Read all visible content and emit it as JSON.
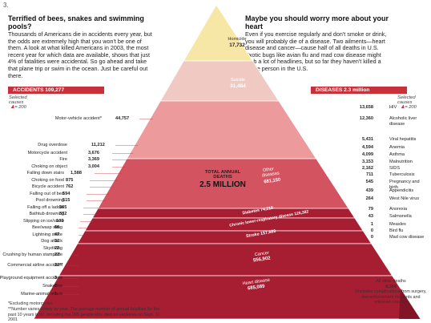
{
  "page_number": "3.",
  "left_panel": {
    "heading": "Terrified of bees, snakes and swimming pools?",
    "body": "Thousands of Americans die in accidents every year, but the odds are extremely high that you won't be one of them. A look at what killed Americans in 2003, the most recent year for which data are available, shows that just 4% of fatalities were accidental. So go ahead and take that plane trip or swim in the ocean. Just be careful out there.",
    "bar_label": "ACCIDENTS 109,277",
    "selected": "Selected causes",
    "scale": "= 200"
  },
  "right_panel": {
    "heading": "Maybe you should worry more about your heart",
    "body": "Even if you exercise regularly and don't smoke or drink, you will probably die of a disease. Two ailments—heart disease and cancer—cause half of all deaths in U.S. Exotic bugs like avian flu and mad cow disease might grab a lot of headlines, but so far they haven't killed a single person in the U.S.",
    "bar_label": "DISEASES 2.3 million",
    "selected": "Selected causes",
    "scale": "= 200"
  },
  "center": {
    "total_label": "TOTAL ANNUAL DEATHS",
    "total_value": "2.5 MILLION"
  },
  "chart_data": {
    "type": "pyramid",
    "title": "TOTAL ANNUAL DEATHS 2.5 MILLION",
    "pyramid_tiers": [
      {
        "label": "Homicide",
        "value": "17,732"
      },
      {
        "label": "Suicide",
        "value": "31,484"
      },
      {
        "label": "Accidents",
        "value": ""
      },
      {
        "label": "Other diseases",
        "value": "681,150"
      },
      {
        "label": "Diabetes",
        "value": "74,219"
      },
      {
        "label": "Chronic lower-respiratory disease",
        "value": "126,382"
      },
      {
        "label": "Stroke",
        "value": "157,689"
      },
      {
        "label": "Cancer",
        "value": "556,902"
      },
      {
        "label": "Heart disease",
        "value": "685,089"
      }
    ],
    "accidents": {
      "total": 109277,
      "causes": [
        {
          "label": "Motor-vehicle accident*",
          "value": "44,757"
        },
        {
          "label": "Drug overdose",
          "value": "11,212"
        },
        {
          "label": "Motorcycle accident",
          "value": "3,676"
        },
        {
          "label": "Fire",
          "value": "3,369"
        },
        {
          "label": "Choking on object",
          "value": "3,004"
        },
        {
          "label": "Falling down stairs",
          "value": "1,588"
        },
        {
          "label": "Choking on food",
          "value": "875"
        },
        {
          "label": "Bicycle accident",
          "value": "762"
        },
        {
          "label": "Falling out of bed",
          "value": "594"
        },
        {
          "label": "Pool drowning",
          "value": "515"
        },
        {
          "label": "Falling off a ladder",
          "value": "365"
        },
        {
          "label": "Bathtub drowning",
          "value": "332"
        },
        {
          "label": "Slipping on ice/snow",
          "value": "103"
        },
        {
          "label": "Bee/wasp sting",
          "value": "66"
        },
        {
          "label": "Lightning strike",
          "value": "47"
        },
        {
          "label": "Dog attack",
          "value": "32"
        },
        {
          "label": "Skydiving",
          "value": "22"
        },
        {
          "label": "Crushing by human stampede",
          "value": "22"
        },
        {
          "label": "Commercial airline accident",
          "value": "22**"
        },
        {
          "label": "Playground equipment accident",
          "value": "3"
        },
        {
          "label": "Snakebite",
          "value": "2"
        },
        {
          "label": "Marine-animal attack",
          "value": "1"
        }
      ]
    },
    "diseases": {
      "total": "2.3 million",
      "causes": [
        {
          "label": "HIV",
          "value": "13,658"
        },
        {
          "label": "Alcoholic liver disease",
          "value": "12,360"
        },
        {
          "label": "Viral hepatitis",
          "value": "5,431"
        },
        {
          "label": "Anemia",
          "value": "4,594"
        },
        {
          "label": "Asthma",
          "value": "4,099"
        },
        {
          "label": "Malnutrition",
          "value": "3,153"
        },
        {
          "label": "SIDS",
          "value": "2,162"
        },
        {
          "label": "Tuberculosis",
          "value": "711"
        },
        {
          "label": "Pregnancy and birth",
          "value": "545"
        },
        {
          "label": "Appendicitis",
          "value": "439"
        },
        {
          "label": "West Nile virus",
          "value": "264"
        },
        {
          "label": "Anorexia",
          "value": "79"
        },
        {
          "label": "Salmonella",
          "value": "43"
        },
        {
          "label": "Measles",
          "value": "1"
        },
        {
          "label": "Bird flu",
          "value": "0"
        },
        {
          "label": "Mad cow disease",
          "value": "0"
        }
      ]
    },
    "all_other": {
      "label": "All other deaths",
      "value": "8,364",
      "note": "(Includes complications from surgery, law-enforcement incidents and unknown causes)"
    }
  },
  "footnotes": {
    "excluding": "*Excluding motorcycles",
    "number_varies": "**Number varies widely by year. The average number of annual fatalities for the past 10 years is 82, including the 265 people who died on airplanes on Sept. 11, 2001"
  },
  "colors": {
    "accent": "#c8303a",
    "homicide": "#f6e7a6",
    "suicide": "#f0c9c2",
    "light_red": "#ec9a9c",
    "mid_red": "#d45360",
    "deep_red": "#a71d31"
  }
}
